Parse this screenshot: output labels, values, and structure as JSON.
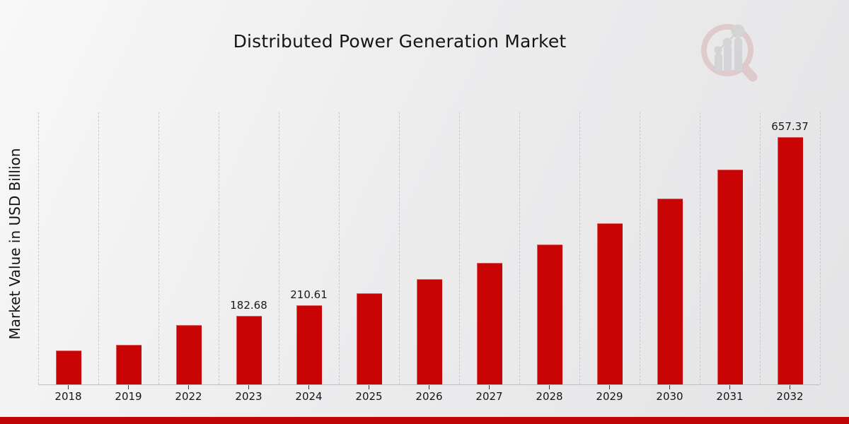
{
  "page": {
    "title": "Distributed Power Generation Market"
  },
  "chart_data": {
    "type": "bar",
    "title": "Distributed Power Generation Market",
    "xlabel": "",
    "ylabel": "Market Value in USD Billion",
    "categories": [
      "2018",
      "2019",
      "2022",
      "2023",
      "2024",
      "2025",
      "2026",
      "2027",
      "2028",
      "2029",
      "2030",
      "2031",
      "2032"
    ],
    "values": [
      90.7,
      104.6,
      158.5,
      182.68,
      210.61,
      242.8,
      279.9,
      322.7,
      372.1,
      429.0,
      494.6,
      570.2,
      657.37
    ],
    "data_labels": [
      "",
      "",
      "",
      "182.68",
      "210.61",
      "",
      "",
      "",
      "",
      "",
      "",
      "",
      "657.37"
    ],
    "ylim": [
      0,
      725
    ],
    "grid": "vertical-dashed",
    "legend": "none",
    "bar_color": "#c90404",
    "gridline_color": "#c9c9cc",
    "axis_line_color": "#bfbfc2"
  },
  "branding": {
    "logo_icon": "magnifier-bar-chart-watermark-logo",
    "ring_color": "#d9b3b3",
    "glyph_color": "#c3c3c6"
  },
  "footer": {
    "accent_color": "#c00505"
  }
}
